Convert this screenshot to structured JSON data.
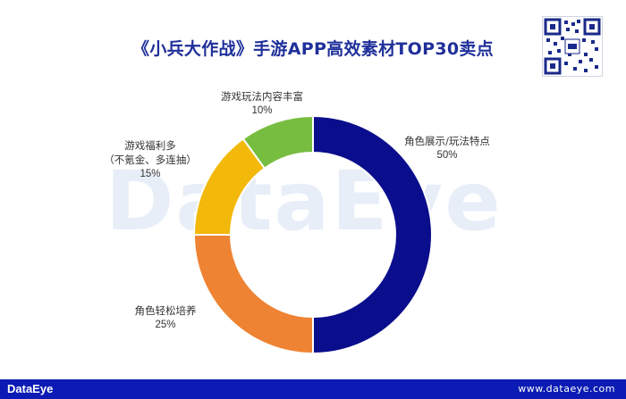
{
  "chart_data": {
    "type": "pie",
    "donut": true,
    "title": "《小兵大作战》手游APP高效素材TOP30卖点",
    "slices": [
      {
        "label": "角色展示/玩法特点",
        "value": 50,
        "value_label": "50%",
        "color": "#0a0e8c"
      },
      {
        "label": "角色轻松培养",
        "value": 25,
        "value_label": "25%",
        "color": "#ee8333"
      },
      {
        "label": "游戏福利多",
        "label_line2": "（不氪金、多连抽）",
        "value": 15,
        "value_label": "15%",
        "color": "#f2b90b"
      },
      {
        "label": "游戏玩法内容丰富",
        "value": 10,
        "value_label": "10%",
        "color": "#77bd3f"
      }
    ],
    "legend": "none",
    "start": "top",
    "direction": "clockwise"
  },
  "watermark": "DataEye",
  "footer": {
    "brand": "DataEye",
    "url": "www.dataeye.com"
  },
  "qr_code_icon": "qr-code"
}
